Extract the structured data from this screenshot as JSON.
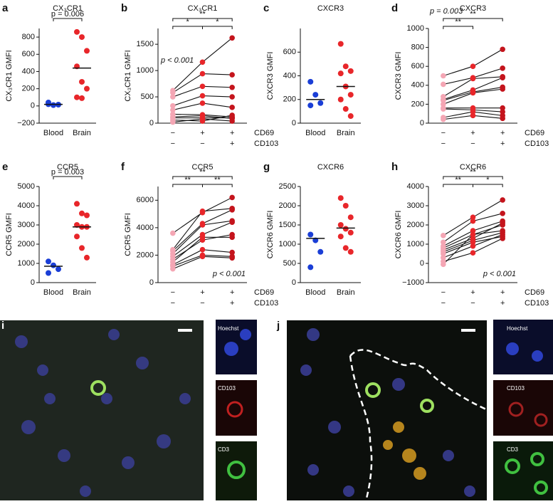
{
  "chart_data": [
    {
      "type": "dot",
      "panel": "a",
      "title": "CX₃CR1",
      "y_label": "CX₃CR1 GMFI",
      "categories": [
        "Blood",
        "Brain"
      ],
      "groups": [
        {
          "color": "#1a3ed6",
          "values": [
            20,
            10,
            15,
            40
          ],
          "median": 18
        },
        {
          "color": "#e8262a",
          "values": [
            860,
            800,
            640,
            460,
            280,
            200,
            100,
            90
          ],
          "median": 440
        }
      ],
      "ylim": [
        -200,
        900
      ],
      "yticks": [
        {
          "value": -200,
          "label": "−200"
        },
        0,
        200,
        400,
        600,
        800
      ],
      "brackets": [
        {
          "span": [
            0,
            1
          ],
          "label": "p = 0.006"
        }
      ]
    },
    {
      "type": "paired",
      "panel": "b",
      "title": "CX₃CR1",
      "y_label": "CX₃CR1 GMFI",
      "row_labels": [
        "CD69",
        "CD103"
      ],
      "rows": [
        [
          "−",
          "+",
          "+"
        ],
        [
          "−",
          "−",
          "+"
        ]
      ],
      "colors": [
        "#f4a6b4",
        "#e8262a",
        "#c4141c"
      ],
      "donors": [
        [
          620,
          1160,
          1620
        ],
        [
          580,
          940,
          920
        ],
        [
          500,
          700,
          680
        ],
        [
          330,
          520,
          500
        ],
        [
          250,
          380,
          300
        ],
        [
          170,
          160,
          120
        ],
        [
          120,
          140,
          90
        ],
        [
          100,
          100,
          100
        ],
        [
          60,
          40,
          150
        ],
        [
          20,
          80,
          40
        ]
      ],
      "ylim": [
        0,
        1800
      ],
      "yticks": [
        0,
        500,
        1000,
        1500
      ],
      "brackets": [
        {
          "span": [
            0,
            2
          ],
          "label": "**"
        },
        {
          "span": [
            0,
            1
          ],
          "label": "*"
        },
        {
          "span": [
            1,
            2
          ],
          "label": "*"
        }
      ],
      "annotation": "p < 0.001",
      "annotation_pos": "upper left"
    },
    {
      "type": "dot",
      "panel": "c",
      "title": "CXCR3",
      "y_label": "CXCR3 GMFI",
      "categories": [
        "Blood",
        "Brain"
      ],
      "groups": [
        {
          "color": "#1a3ed6",
          "values": [
            350,
            240,
            170,
            150
          ],
          "median": 200
        },
        {
          "color": "#e8262a",
          "values": [
            670,
            480,
            440,
            420,
            310,
            240,
            200,
            120,
            60
          ],
          "median": 310
        }
      ],
      "ylim": [
        0,
        800
      ],
      "yticks": [
        0,
        200,
        400,
        600
      ],
      "brackets": []
    },
    {
      "type": "paired",
      "panel": "d",
      "title": "CXCR3",
      "y_label": "CXCR3 GMFI",
      "row_labels": [
        "CD69",
        "CD103"
      ],
      "rows": [
        [
          "−",
          "+",
          "+"
        ],
        [
          "−",
          "−",
          "+"
        ]
      ],
      "colors": [
        "#f4a6b4",
        "#e8262a",
        "#c4141c"
      ],
      "donors": [
        [
          500,
          600,
          780
        ],
        [
          410,
          480,
          580
        ],
        [
          280,
          470,
          490
        ],
        [
          250,
          350,
          480
        ],
        [
          240,
          330,
          380
        ],
        [
          200,
          320,
          360
        ],
        [
          160,
          160,
          160
        ],
        [
          150,
          140,
          120
        ],
        [
          60,
          120,
          80
        ],
        [
          40,
          80,
          50
        ]
      ],
      "ylim": [
        0,
        1000
      ],
      "yticks": [
        0,
        200,
        400,
        600,
        800,
        1000
      ],
      "brackets": [
        {
          "span": [
            0,
            2
          ],
          "label": "**"
        },
        {
          "span": [
            0,
            1
          ],
          "label": "**"
        }
      ],
      "annotation": "p = 0.003",
      "annotation_pos": "above"
    },
    {
      "type": "dot",
      "panel": "e",
      "title": "CCR5",
      "y_label": "CCR5 GMFI",
      "categories": [
        "Blood",
        "Brain"
      ],
      "groups": [
        {
          "color": "#1a3ed6",
          "values": [
            1100,
            900,
            700,
            500
          ],
          "median": 850
        },
        {
          "color": "#e8262a",
          "values": [
            4100,
            3600,
            3500,
            3000,
            2900,
            2900,
            2400,
            1800,
            1300
          ],
          "median": 2900
        }
      ],
      "ylim": [
        0,
        5000
      ],
      "yticks": [
        0,
        1000,
        2000,
        3000,
        4000,
        5000
      ],
      "brackets": [
        {
          "span": [
            0,
            1
          ],
          "label": "p = 0.003"
        }
      ]
    },
    {
      "type": "paired",
      "panel": "f",
      "title": "CCR5",
      "y_label": "CCR5 GMFI",
      "row_labels": [
        "CD69",
        "CD103"
      ],
      "rows": [
        [
          "−",
          "+",
          "+"
        ],
        [
          "−",
          "−",
          "+"
        ]
      ],
      "colors": [
        "#f4a6b4",
        "#e8262a",
        "#c4141c"
      ],
      "donors": [
        [
          3600,
          5100,
          6200
        ],
        [
          2400,
          5200,
          5400
        ],
        [
          2300,
          4300,
          5300
        ],
        [
          2100,
          4200,
          4500
        ],
        [
          1900,
          3500,
          4400
        ],
        [
          1700,
          3100,
          3500
        ],
        [
          1500,
          3300,
          3300
        ],
        [
          1300,
          2400,
          2200
        ],
        [
          1200,
          2000,
          1900
        ],
        [
          1000,
          1900,
          1800
        ]
      ],
      "ylim": [
        0,
        7000
      ],
      "yticks": [
        0,
        2000,
        4000,
        6000
      ],
      "brackets": [
        {
          "span": [
            0,
            2
          ],
          "label": "**"
        },
        {
          "span": [
            0,
            1
          ],
          "label": "**"
        },
        {
          "span": [
            1,
            2
          ],
          "label": "**"
        }
      ],
      "annotation": "p < 0.001",
      "annotation_pos": "lower right"
    },
    {
      "type": "dot",
      "panel": "g",
      "title": "CXCR6",
      "y_label": "CXCR6 GMFI",
      "categories": [
        "Blood",
        "Brain"
      ],
      "groups": [
        {
          "color": "#1a3ed6",
          "values": [
            1250,
            1100,
            800,
            400
          ],
          "median": 1150
        },
        {
          "color": "#e8262a",
          "values": [
            2200,
            2000,
            1700,
            1500,
            1400,
            1300,
            1200,
            900,
            800
          ],
          "median": 1420
        }
      ],
      "ylim": [
        0,
        2500
      ],
      "yticks": [
        0,
        500,
        1000,
        1500,
        2000,
        2500
      ],
      "brackets": []
    },
    {
      "type": "paired",
      "panel": "h",
      "title": "CXCR6",
      "y_label": "CXCR6 GMFI",
      "row_labels": [
        "CD69",
        "CD103"
      ],
      "rows": [
        [
          "−",
          "+",
          "+"
        ],
        [
          "−",
          "−",
          "+"
        ]
      ],
      "colors": [
        "#f4a6b4",
        "#e8262a",
        "#c4141c"
      ],
      "donors": [
        [
          1450,
          2400,
          3300
        ],
        [
          1100,
          2200,
          2600
        ],
        [
          900,
          1700,
          2200
        ],
        [
          800,
          1500,
          2000
        ],
        [
          700,
          1300,
          2100
        ],
        [
          600,
          1200,
          1600
        ],
        [
          500,
          1100,
          1400
        ],
        [
          300,
          900,
          1500
        ],
        [
          100,
          550,
          1300
        ],
        [
          -50,
          1500,
          1700
        ]
      ],
      "ylim": [
        -1000,
        4000
      ],
      "yticks": [
        {
          "value": -1000,
          "label": "−1000"
        },
        0,
        1000,
        2000,
        3000,
        4000
      ],
      "brackets": [
        {
          "span": [
            0,
            2
          ],
          "label": "**"
        },
        {
          "span": [
            0,
            1
          ],
          "label": "**"
        },
        {
          "span": [
            1,
            2
          ],
          "label": "*"
        }
      ],
      "annotation": "p < 0.001",
      "annotation_pos": "lower right"
    }
  ],
  "images": [
    {
      "panel": "i",
      "insets": [
        "Hoechst",
        "CD103",
        "CD3"
      ]
    },
    {
      "panel": "j",
      "insets": [
        "Hoechst",
        "CD103",
        "CD3"
      ]
    }
  ]
}
